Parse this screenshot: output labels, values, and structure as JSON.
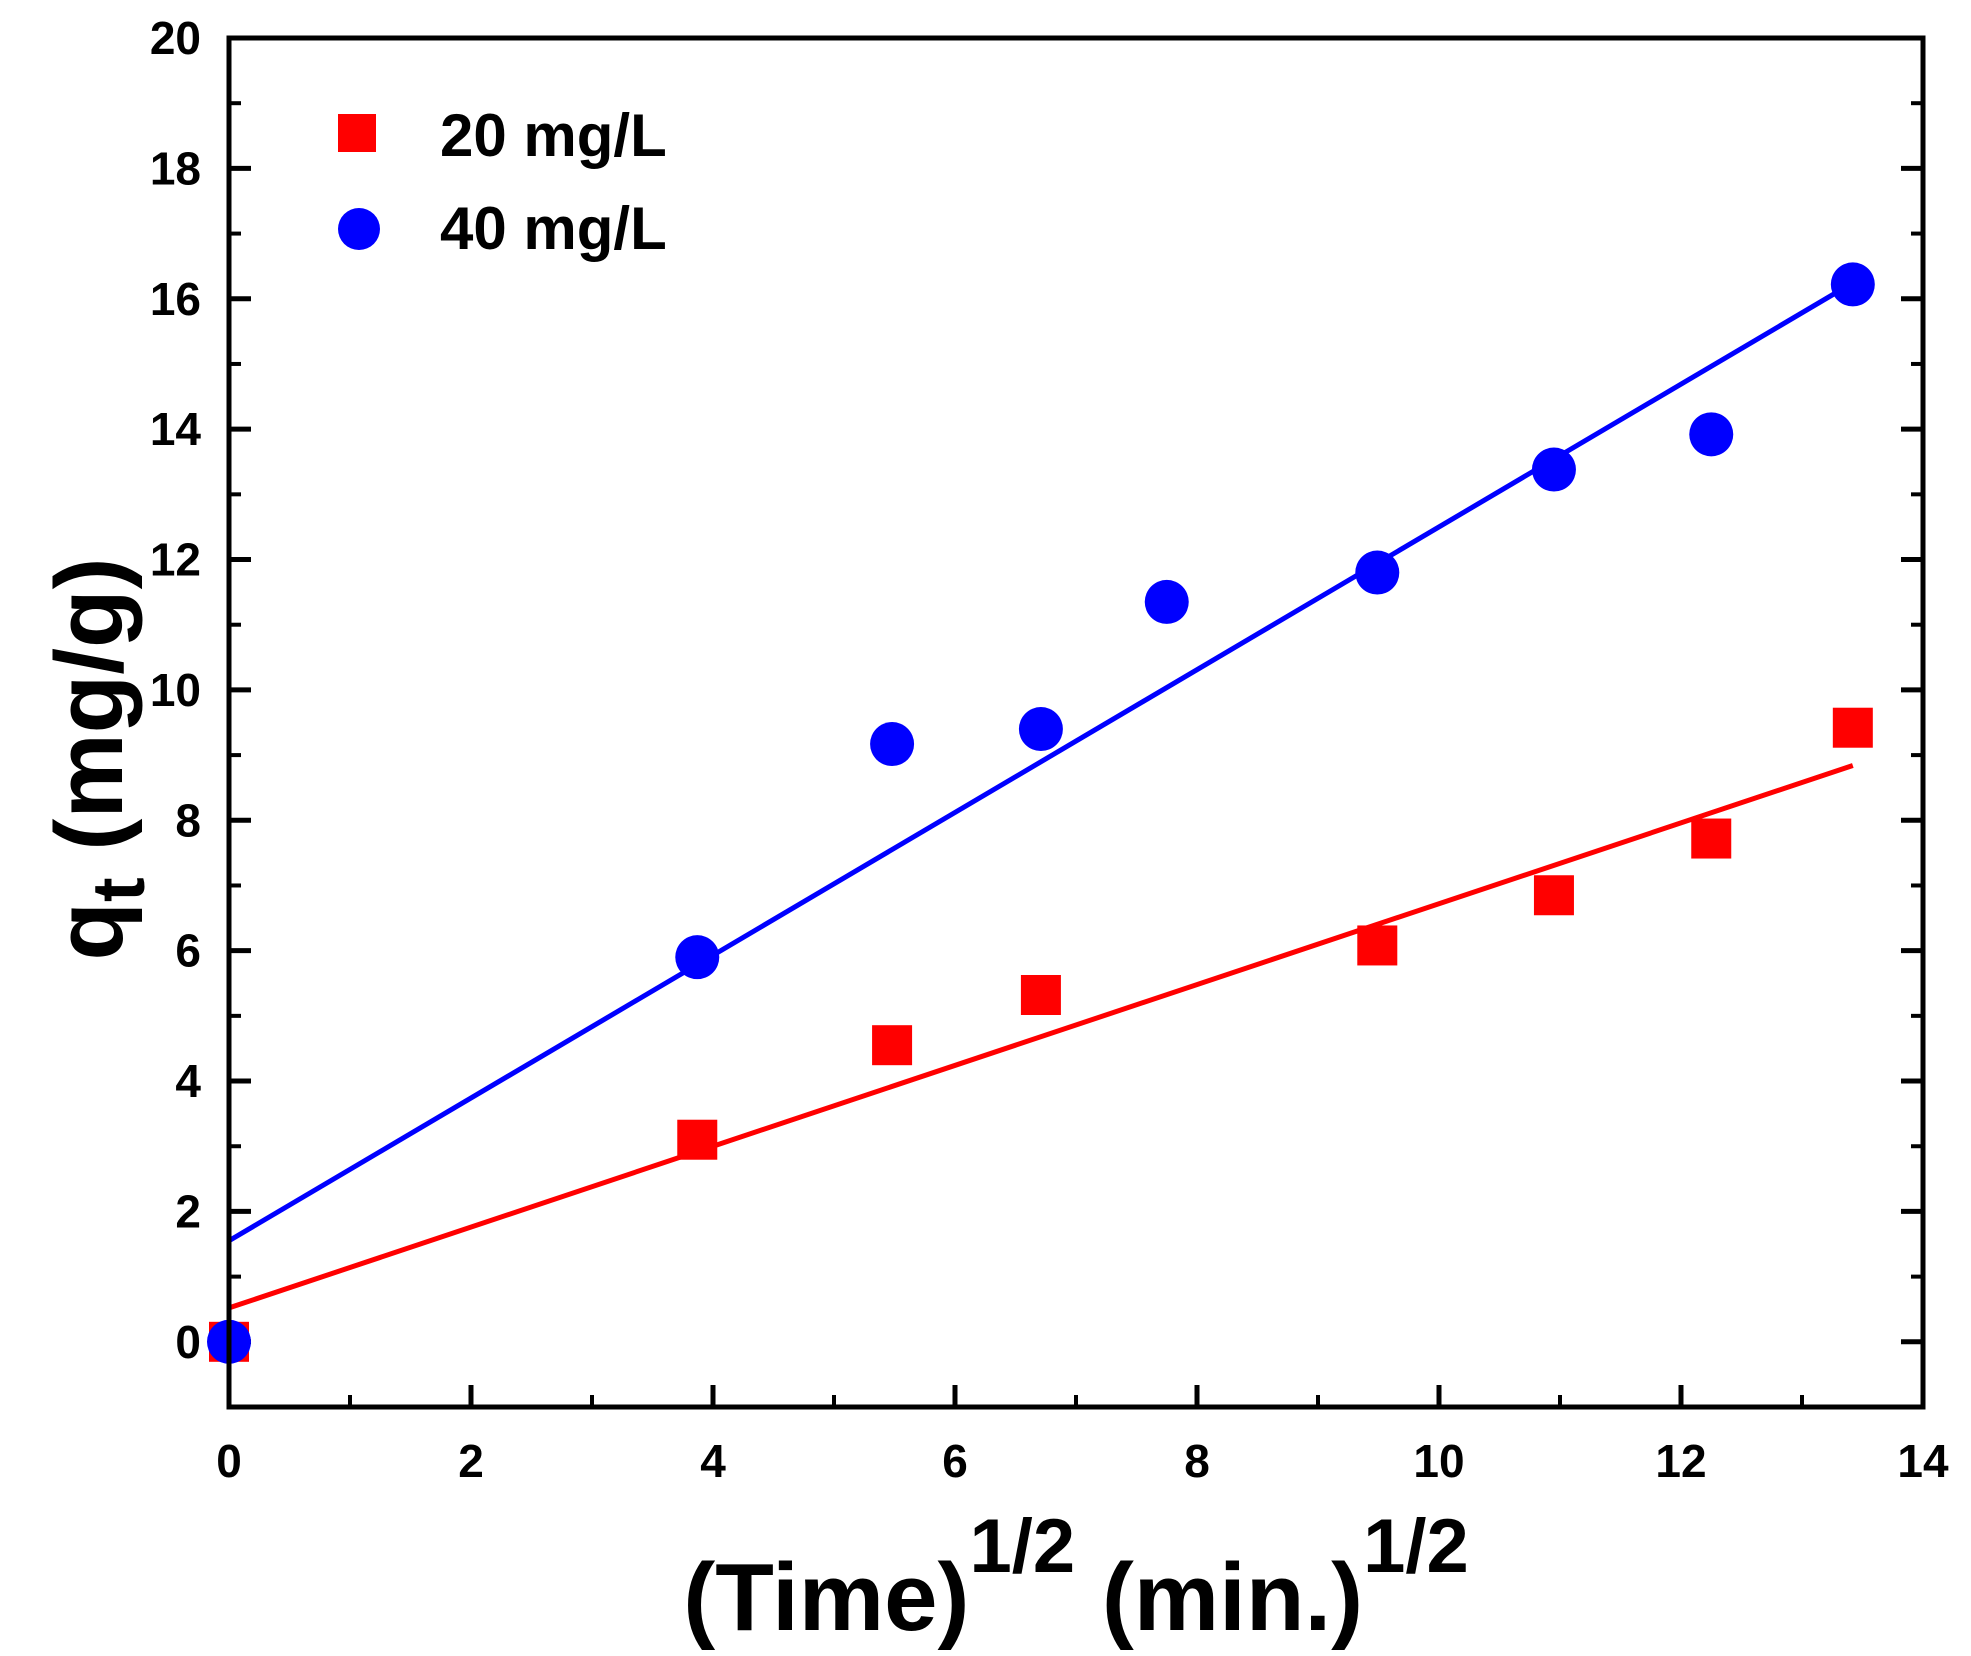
{
  "chart_data": {
    "type": "scatter",
    "x_axis": {
      "label_main": "(Time)",
      "label_sup1": "1/2",
      "label_unit": " (min.)",
      "label_sup2": "1/2",
      "range": [
        0,
        14
      ],
      "ticks": [
        0,
        2,
        4,
        6,
        8,
        10,
        12,
        14
      ],
      "tick_labels": [
        "0",
        "2",
        "4",
        "6",
        "8",
        "10",
        "12",
        "14"
      ]
    },
    "y_axis": {
      "label_main": "q",
      "label_sub": "t",
      "label_unit": " (mg/g)",
      "range": [
        -1,
        20
      ],
      "ticks": [
        0,
        2,
        4,
        6,
        8,
        10,
        12,
        14,
        16,
        18,
        20
      ],
      "tick_labels": [
        "0",
        "2",
        "4",
        "6",
        "8",
        "10",
        "12",
        "14",
        "16",
        "18",
        "20"
      ]
    },
    "grid": false,
    "legend_position": "top-left",
    "series": [
      {
        "name": "20 mg/L",
        "marker": "square",
        "color": "#ff0000",
        "points": [
          [
            0,
            0
          ],
          [
            3.87,
            3.1
          ],
          [
            5.48,
            4.55
          ],
          [
            6.71,
            5.32
          ],
          [
            9.49,
            6.08
          ],
          [
            10.95,
            6.85
          ],
          [
            12.25,
            7.72
          ],
          [
            13.42,
            9.42
          ]
        ],
        "fit": {
          "intercept": 0.52,
          "slope": 0.62,
          "x_start": 0,
          "x_end": 13.42
        }
      },
      {
        "name": "40 mg/L",
        "marker": "circle",
        "color": "#0000ff",
        "points": [
          [
            0,
            0
          ],
          [
            3.87,
            5.9
          ],
          [
            5.48,
            9.17
          ],
          [
            6.71,
            9.4
          ],
          [
            7.75,
            11.35
          ],
          [
            9.49,
            11.8
          ],
          [
            10.95,
            13.38
          ],
          [
            12.25,
            13.92
          ],
          [
            13.42,
            16.22
          ]
        ],
        "fit": {
          "intercept": 1.55,
          "slope": 1.095,
          "x_start": 0,
          "x_end": 13.42
        }
      }
    ]
  }
}
